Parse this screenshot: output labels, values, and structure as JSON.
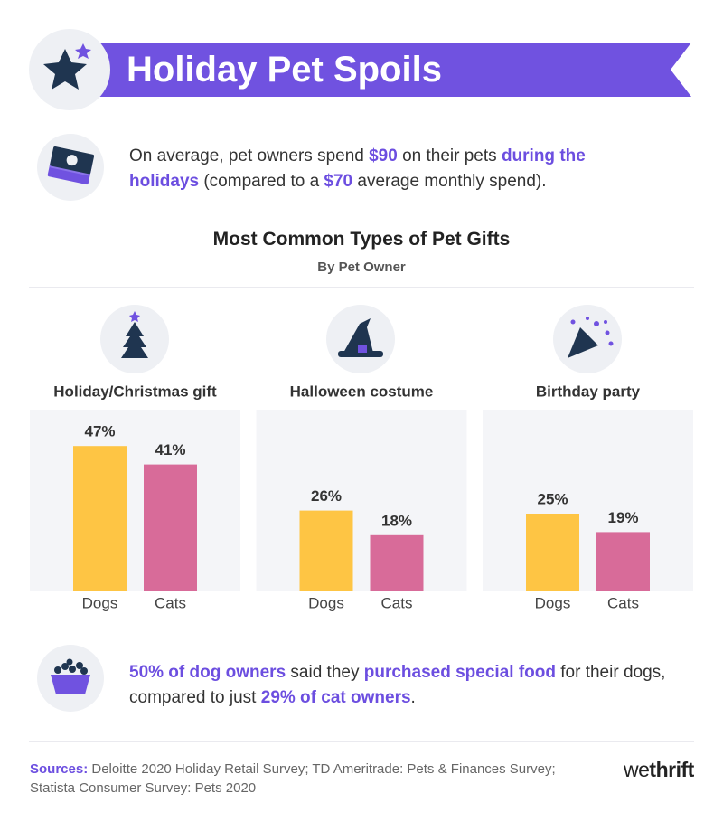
{
  "header": {
    "title": "Holiday Pet Spoils"
  },
  "fact_spend": {
    "segments": [
      {
        "text": "On average, pet owners spend "
      },
      {
        "text": "$90",
        "em": true
      },
      {
        "text": " on their pets "
      },
      {
        "text": "during the holidays",
        "em": true
      },
      {
        "text": " (compared to a "
      },
      {
        "text": "$70",
        "em": true
      },
      {
        "text": " average monthly spend)."
      }
    ]
  },
  "charts_header": {
    "title": "Most Common Types of Pet Gifts",
    "subtitle": "By Pet Owner"
  },
  "chart_data": [
    {
      "type": "bar",
      "title": "Holiday/Christmas gift",
      "categories": [
        "Dogs",
        "Cats"
      ],
      "values": [
        47,
        41
      ],
      "value_labels": [
        "47%",
        "41%"
      ],
      "colors": [
        "#fec544",
        "#d86b99"
      ]
    },
    {
      "type": "bar",
      "title": "Halloween costume",
      "categories": [
        "Dogs",
        "Cats"
      ],
      "values": [
        26,
        18
      ],
      "value_labels": [
        "26%",
        "18%"
      ],
      "colors": [
        "#fec544",
        "#d86b99"
      ]
    },
    {
      "type": "bar",
      "title": "Birthday party",
      "categories": [
        "Dogs",
        "Cats"
      ],
      "values": [
        25,
        19
      ],
      "value_labels": [
        "25%",
        "19%"
      ],
      "colors": [
        "#fec544",
        "#d86b99"
      ]
    }
  ],
  "fact_food": {
    "segments": [
      {
        "text": "50% of dog owners",
        "em": true
      },
      {
        "text": " said they "
      },
      {
        "text": "purchased special food",
        "em": true
      },
      {
        "text": " for their dogs, compared to just "
      },
      {
        "text": "29% of cat owners",
        "em": true
      },
      {
        "text": "."
      }
    ]
  },
  "sources": {
    "label": "Sources:",
    "text": " Deloitte 2020 Holiday Retail Survey; TD Ameritrade: Pets & Finances Survey; Statista Consumer Survey: Pets 2020"
  },
  "logo": [
    "we",
    "thrift"
  ]
}
